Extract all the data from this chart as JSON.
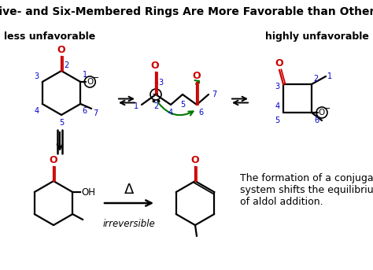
{
  "title": "Five- and Six-Membered Rings Are More Favorable than Others",
  "label_less": "less unfavorable",
  "label_highly": "highly unfavorable",
  "label_irreversible": "irreversible",
  "text_bottom": "The formation of a conjugated\nsystem shifts the equilibrium\nof aldol addition.",
  "bg_color": "#ffffff",
  "red": "#cc0000",
  "blue": "#0000cc",
  "green": "#007700",
  "black": "#000000"
}
